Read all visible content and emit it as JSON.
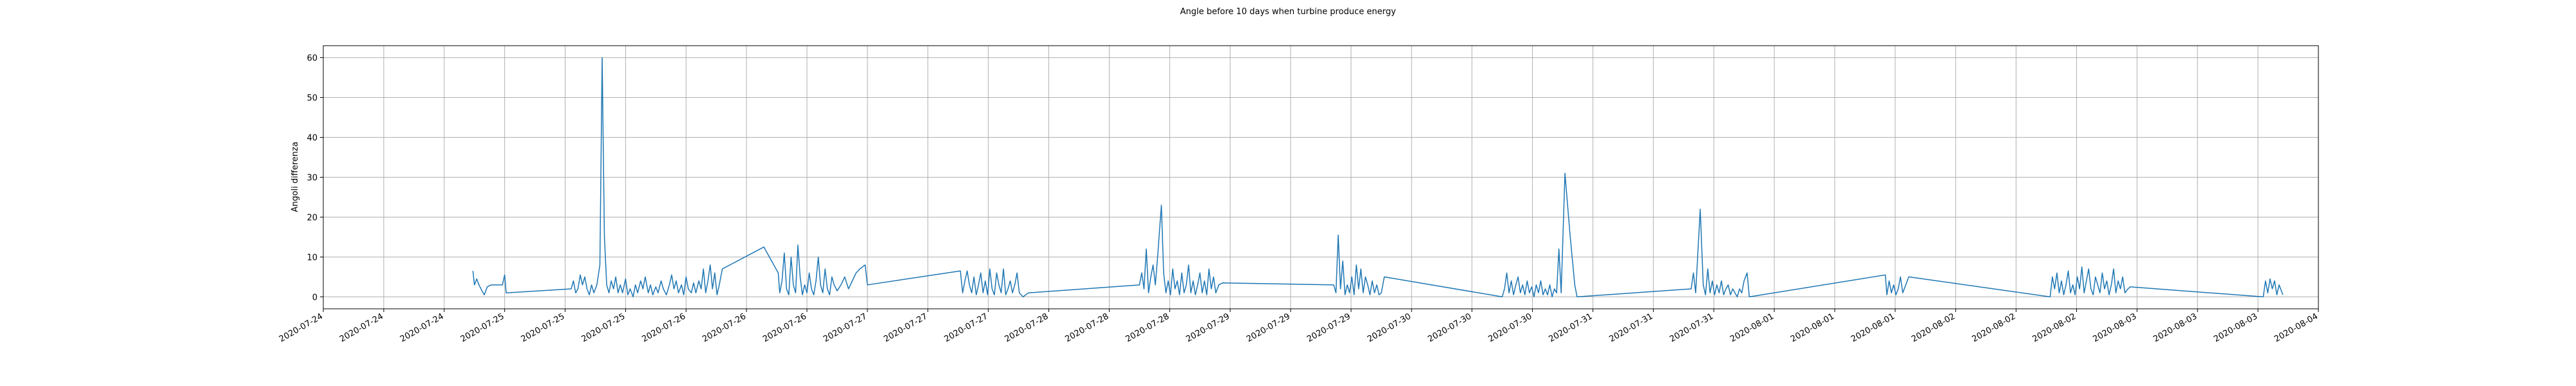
{
  "chart_data": {
    "type": "line",
    "title": "Angle before 10 days when turbine produce energy",
    "y_label": "Angoli differenza",
    "grid": true,
    "xlim": [
      0,
      264
    ],
    "ylim": [
      -3,
      63
    ],
    "yticks": [
      0,
      10,
      20,
      30,
      40,
      50,
      60
    ],
    "xticks": [
      {
        "value": 0,
        "label": "2020-07-24"
      },
      {
        "value": 8,
        "label": "2020-07-24"
      },
      {
        "value": 16,
        "label": "2020-07-24"
      },
      {
        "value": 24,
        "label": "2020-07-25"
      },
      {
        "value": 32,
        "label": "2020-07-25"
      },
      {
        "value": 40,
        "label": "2020-07-25"
      },
      {
        "value": 48,
        "label": "2020-07-26"
      },
      {
        "value": 56,
        "label": "2020-07-26"
      },
      {
        "value": 64,
        "label": "2020-07-26"
      },
      {
        "value": 72,
        "label": "2020-07-27"
      },
      {
        "value": 80,
        "label": "2020-07-27"
      },
      {
        "value": 88,
        "label": "2020-07-27"
      },
      {
        "value": 96,
        "label": "2020-07-28"
      },
      {
        "value": 104,
        "label": "2020-07-28"
      },
      {
        "value": 112,
        "label": "2020-07-28"
      },
      {
        "value": 120,
        "label": "2020-07-29"
      },
      {
        "value": 128,
        "label": "2020-07-29"
      },
      {
        "value": 136,
        "label": "2020-07-29"
      },
      {
        "value": 144,
        "label": "2020-07-30"
      },
      {
        "value": 152,
        "label": "2020-07-30"
      },
      {
        "value": 160,
        "label": "2020-07-30"
      },
      {
        "value": 168,
        "label": "2020-07-31"
      },
      {
        "value": 176,
        "label": "2020-07-31"
      },
      {
        "value": 184,
        "label": "2020-07-31"
      },
      {
        "value": 192,
        "label": "2020-08-01"
      },
      {
        "value": 200,
        "label": "2020-08-01"
      },
      {
        "value": 208,
        "label": "2020-08-01"
      },
      {
        "value": 216,
        "label": "2020-08-02"
      },
      {
        "value": 224,
        "label": "2020-08-02"
      },
      {
        "value": 232,
        "label": "2020-08-02"
      },
      {
        "value": 240,
        "label": "2020-08-03"
      },
      {
        "value": 248,
        "label": "2020-08-03"
      },
      {
        "value": 256,
        "label": "2020-08-03"
      },
      {
        "value": 264,
        "label": "2020-08-04"
      }
    ],
    "x": [
      19.8,
      20.0,
      20.3,
      20.6,
      21.0,
      21.3,
      21.7,
      22.2,
      23.0,
      23.7,
      24.0,
      24.2,
      32.8,
      33.1,
      33.4,
      33.7,
      34.0,
      34.3,
      34.6,
      34.9,
      35.2,
      35.5,
      35.8,
      36.2,
      36.6,
      36.9,
      37.2,
      37.5,
      37.8,
      38.1,
      38.4,
      38.7,
      39.0,
      39.3,
      39.6,
      40.0,
      40.3,
      40.6,
      41.0,
      41.3,
      41.6,
      42.0,
      42.3,
      42.6,
      43.0,
      43.3,
      43.6,
      44.0,
      44.3,
      44.7,
      45.0,
      45.4,
      45.8,
      46.1,
      46.4,
      46.7,
      47.0,
      47.4,
      47.7,
      48.0,
      48.3,
      48.7,
      49.0,
      49.3,
      49.7,
      50.0,
      50.3,
      50.6,
      50.9,
      51.2,
      51.5,
      51.8,
      52.1,
      52.4,
      52.8,
      58.3,
      60.2,
      60.4,
      60.7,
      61.0,
      61.3,
      61.6,
      61.9,
      62.2,
      62.5,
      62.8,
      63.1,
      63.4,
      63.7,
      64.0,
      64.3,
      64.6,
      64.9,
      65.2,
      65.5,
      65.8,
      66.1,
      66.4,
      66.7,
      67.0,
      67.3,
      67.6,
      68.0,
      68.5,
      69.0,
      69.5,
      70.0,
      70.5,
      71.0,
      71.7,
      72.0,
      84.3,
      84.6,
      84.9,
      85.2,
      85.5,
      85.8,
      86.1,
      86.4,
      86.7,
      87.0,
      87.3,
      87.6,
      87.9,
      88.2,
      88.5,
      88.8,
      89.1,
      89.4,
      89.7,
      90.0,
      90.3,
      90.6,
      90.9,
      91.2,
      91.5,
      91.8,
      92.1,
      92.6,
      93.3,
      108.0,
      108.3,
      108.6,
      108.9,
      109.2,
      109.5,
      109.8,
      110.1,
      110.4,
      110.9,
      111.2,
      111.5,
      111.8,
      112.1,
      112.4,
      112.7,
      113.0,
      113.3,
      113.6,
      113.9,
      114.2,
      114.5,
      114.8,
      115.1,
      115.4,
      115.7,
      116.0,
      116.3,
      116.6,
      116.9,
      117.2,
      117.5,
      117.8,
      118.1,
      118.5,
      119.0,
      133.7,
      134.0,
      134.3,
      134.6,
      134.9,
      135.2,
      135.5,
      135.8,
      136.1,
      136.4,
      136.7,
      137.0,
      137.3,
      137.6,
      137.9,
      138.2,
      138.5,
      138.8,
      139.1,
      139.4,
      139.7,
      140.0,
      140.4,
      156.0,
      156.3,
      156.6,
      156.9,
      157.2,
      157.5,
      157.8,
      158.1,
      158.4,
      158.7,
      159.0,
      159.3,
      159.6,
      159.9,
      160.2,
      160.5,
      160.8,
      161.1,
      161.4,
      161.7,
      162.0,
      162.3,
      162.6,
      162.9,
      163.2,
      163.5,
      163.8,
      164.3,
      165.0,
      165.6,
      165.9,
      181.0,
      181.3,
      181.6,
      182.2,
      182.6,
      182.9,
      183.2,
      183.5,
      183.8,
      184.1,
      184.4,
      184.7,
      185.0,
      185.3,
      185.6,
      185.9,
      186.2,
      186.5,
      186.8,
      187.1,
      187.4,
      187.7,
      188.0,
      188.4,
      188.7,
      206.7,
      206.9,
      207.2,
      207.5,
      207.8,
      208.1,
      208.4,
      208.7,
      209.0,
      209.4,
      209.8,
      228.5,
      228.8,
      229.1,
      229.4,
      229.7,
      230.0,
      230.3,
      230.6,
      230.9,
      231.2,
      231.5,
      231.8,
      232.1,
      232.4,
      232.7,
      233.0,
      233.3,
      233.6,
      233.9,
      234.2,
      234.5,
      234.8,
      235.1,
      235.4,
      235.7,
      236.0,
      236.3,
      236.6,
      236.9,
      237.2,
      237.5,
      237.8,
      238.1,
      238.4,
      238.8,
      239.1,
      256.7,
      257.0,
      257.3,
      257.6,
      257.9,
      258.2,
      258.5,
      258.8,
      259.1,
      259.3
    ],
    "series": [
      {
        "name": "Angoli differenza",
        "color": "#1f77b4",
        "values": [
          6.5,
          3,
          4.5,
          3,
          1.5,
          0.5,
          2.5,
          3,
          3,
          3,
          5.5,
          1,
          2,
          4,
          1,
          2,
          5.5,
          3,
          5,
          2,
          0.5,
          3,
          1,
          3,
          8,
          60,
          15,
          3,
          1,
          4,
          2,
          5,
          1,
          3,
          1,
          4.5,
          0.5,
          2,
          0,
          3,
          1,
          4,
          2,
          5,
          1,
          3,
          0.5,
          2.5,
          1,
          4,
          2,
          0.5,
          3,
          5.5,
          2,
          4,
          1,
          3,
          0.5,
          5,
          2,
          1,
          3.5,
          1,
          4,
          2,
          7,
          1,
          4,
          8,
          2,
          6,
          0.5,
          3,
          7,
          12.5,
          6,
          1,
          4,
          11,
          2,
          0.5,
          10,
          3,
          1,
          13,
          5,
          0.5,
          3,
          1,
          6,
          2,
          0.5,
          4,
          10,
          3,
          1,
          7,
          2,
          0.5,
          5,
          3,
          1.5,
          3,
          5,
          2,
          4,
          6,
          7,
          8,
          3,
          6.5,
          1,
          4,
          6.5,
          3,
          1,
          5,
          0.5,
          3,
          6,
          1,
          4,
          0.5,
          7,
          2,
          0.5,
          6,
          3,
          1,
          7,
          0.5,
          2,
          4,
          1,
          3,
          6,
          1,
          0,
          1,
          3,
          6,
          2,
          12,
          1,
          5,
          8,
          3,
          10,
          23,
          6,
          1,
          4,
          0.5,
          7,
          2,
          4,
          0.5,
          6,
          1,
          3,
          8,
          1,
          4,
          0.5,
          3,
          6,
          1,
          4,
          0.5,
          7,
          2,
          5,
          1,
          3,
          3.5,
          3,
          1,
          15.5,
          2,
          9,
          0.5,
          3,
          1,
          5,
          0.5,
          8,
          2,
          7,
          1,
          5,
          3,
          0.5,
          4,
          1,
          3,
          0.5,
          1,
          5,
          0,
          2,
          6,
          1,
          4,
          0.5,
          3,
          5,
          1,
          3,
          0.5,
          4,
          1,
          2.5,
          0,
          3,
          1,
          4,
          0.5,
          2,
          0.5,
          3,
          0,
          2,
          1,
          12,
          1,
          31,
          15,
          3,
          0,
          2,
          6,
          1,
          22,
          3,
          0.5,
          7,
          1,
          4,
          0.5,
          3,
          1,
          4,
          0.5,
          2,
          3,
          0.5,
          2,
          1,
          0,
          2,
          1,
          4,
          6,
          0,
          5.5,
          0.5,
          4,
          1,
          3,
          0.5,
          2,
          5,
          1,
          3,
          5,
          0,
          5,
          2,
          6,
          1,
          4,
          0.5,
          3,
          6.5,
          1,
          3,
          0.5,
          5,
          2,
          7.5,
          1,
          4,
          7,
          2,
          0.5,
          5,
          3,
          1,
          6,
          2,
          4,
          0.5,
          3,
          7,
          1,
          4,
          2,
          5,
          1,
          2,
          2.5,
          0,
          4,
          1,
          4.5,
          2,
          4,
          0.5,
          3,
          1.5,
          0.5
        ]
      }
    ]
  }
}
